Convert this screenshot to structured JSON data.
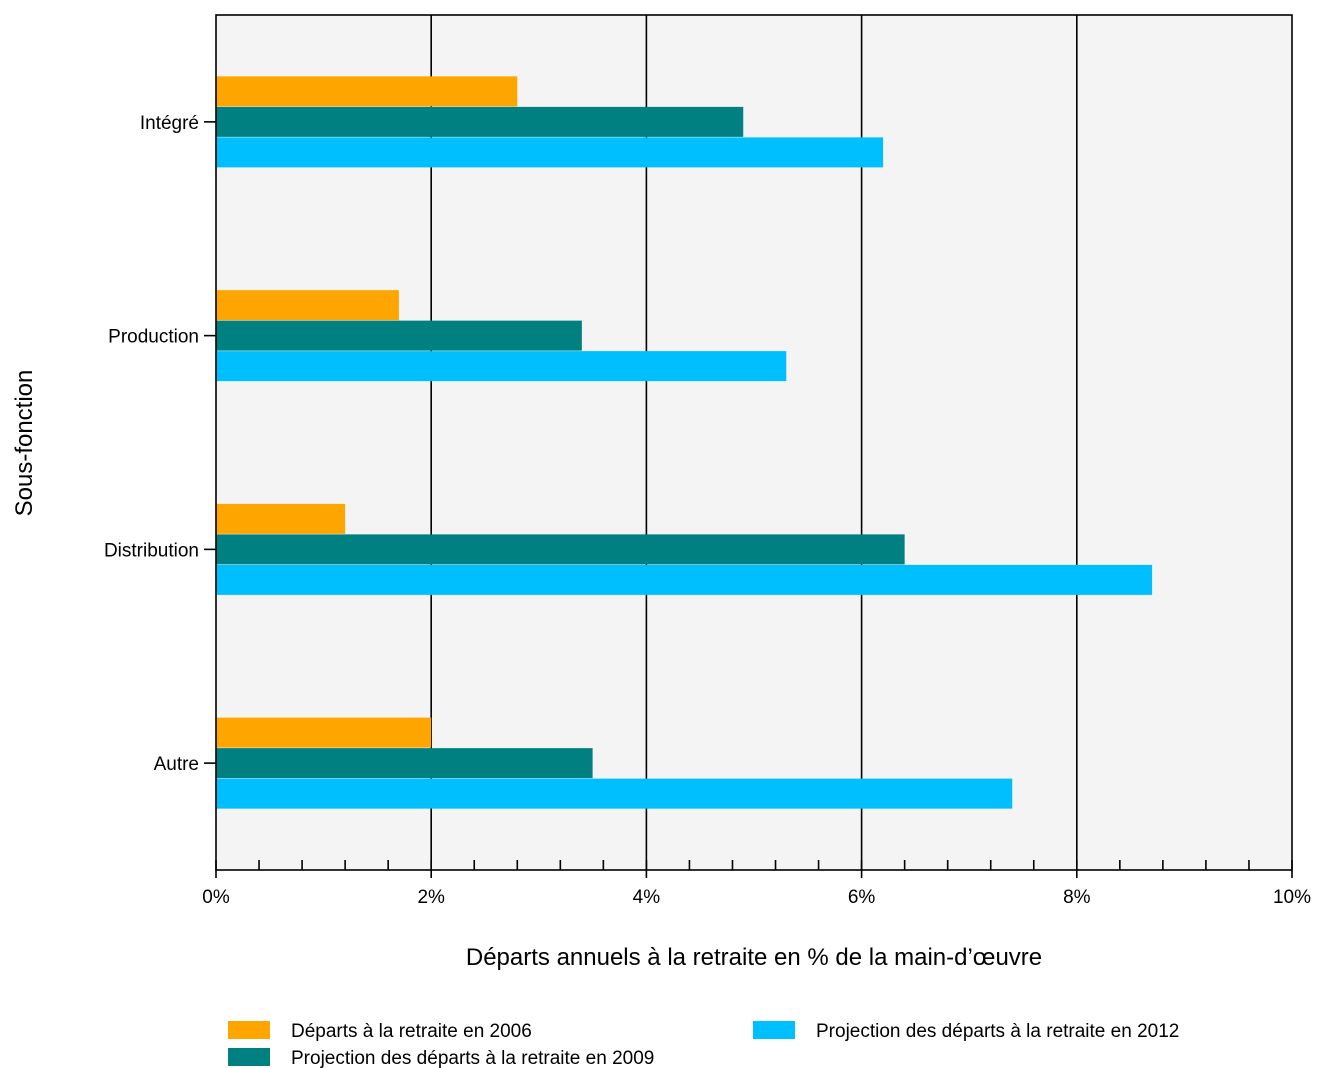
{
  "chart_data": {
    "type": "bar",
    "orientation": "horizontal",
    "categories": [
      "Intégré",
      "Production",
      "Distribution",
      "Autre"
    ],
    "series": [
      {
        "name": "Départs à la retraite en 2006",
        "color": "#FFA500",
        "values": [
          2.8,
          1.7,
          1.2,
          2.0
        ]
      },
      {
        "name": "Projection des départs à la retraite en 2009",
        "color": "#008080",
        "values": [
          4.9,
          3.4,
          6.4,
          3.5
        ]
      },
      {
        "name": "Projection des départs à la retraite en 2012",
        "color": "#00BFFF",
        "values": [
          6.2,
          5.3,
          8.7,
          7.4
        ]
      }
    ],
    "xlabel": "Départs annuels à la retraite en % de la main-d’œuvre",
    "ylabel": "Sous-fonction",
    "xlim": [
      0,
      10
    ],
    "x_ticks": [
      "0%",
      "2%",
      "4%",
      "6%",
      "8%",
      "10%"
    ],
    "grid": "vertical major gridlines",
    "plot_background": "#F4F4F4",
    "legend_placement": "bottom"
  }
}
